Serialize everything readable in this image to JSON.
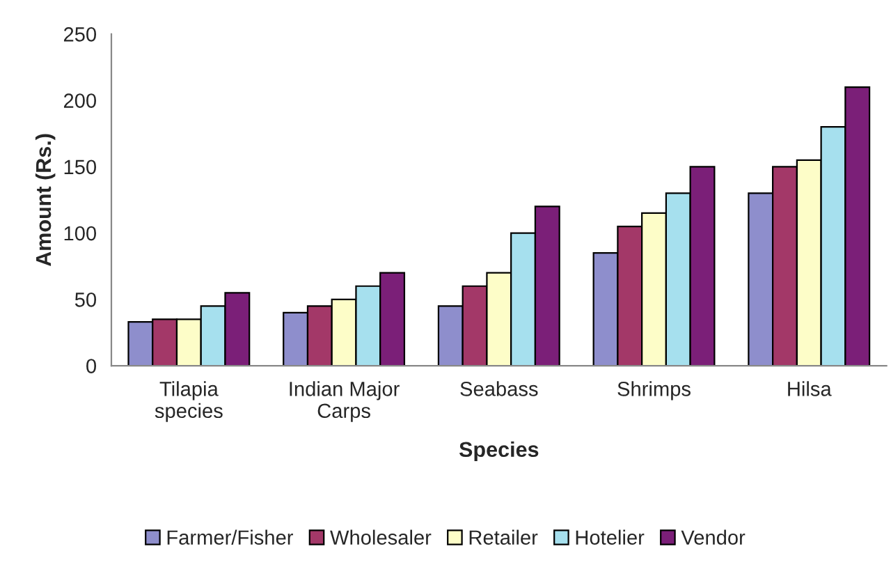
{
  "chart_data": {
    "type": "bar",
    "xlabel": "Species",
    "ylabel": "Amount (Rs.)",
    "categories": [
      "Tilapia\nspecies",
      "Indian Major\nCarps",
      "Seabass",
      "Shrimps",
      "Hilsa"
    ],
    "series": [
      {
        "name": "Farmer/Fisher",
        "color": "#8e8ecc",
        "values": [
          33,
          40,
          45,
          85,
          130
        ]
      },
      {
        "name": "Wholesaler",
        "color": "#a33868",
        "values": [
          35,
          45,
          60,
          105,
          150
        ]
      },
      {
        "name": "Retailer",
        "color": "#fdfdc8",
        "values": [
          35,
          50,
          70,
          115,
          155
        ]
      },
      {
        "name": "Hotelier",
        "color": "#a6e0ee",
        "values": [
          45,
          60,
          100,
          130,
          180
        ]
      },
      {
        "name": "Vendor",
        "color": "#7b1f78",
        "values": [
          55,
          70,
          120,
          150,
          210
        ]
      }
    ],
    "ylim": [
      0,
      250
    ],
    "yticks": [
      0,
      50,
      100,
      150,
      200,
      250
    ],
    "grid": false,
    "legend": "bottom"
  }
}
